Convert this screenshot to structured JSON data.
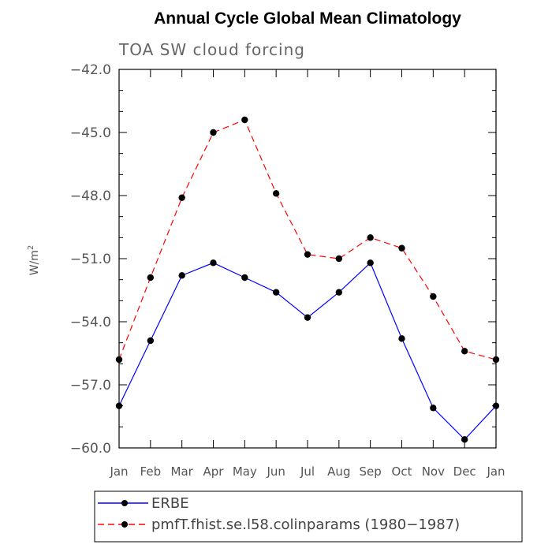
{
  "chart_data": {
    "type": "line",
    "title": "Annual Cycle Global Mean Climatology",
    "subtitle": "TOA SW cloud forcing",
    "xlabel": "",
    "ylabel": "W/m",
    "ylabel_superscript": "2",
    "categories": [
      "Jan",
      "Feb",
      "Mar",
      "Apr",
      "May",
      "Jun",
      "Jul",
      "Aug",
      "Sep",
      "Oct",
      "Nov",
      "Dec",
      "Jan"
    ],
    "ylim": [
      -60.0,
      -42.0
    ],
    "yticks": [
      -42.0,
      -45.0,
      -48.0,
      -51.0,
      -54.0,
      -57.0,
      -60.0
    ],
    "ytick_labels": [
      "−42.0",
      "−45.0",
      "−48.0",
      "−51.0",
      "−54.0",
      "−57.0",
      "−60.0"
    ],
    "grid": false,
    "legend_position": "bottom",
    "series": [
      {
        "name": "ERBE",
        "color": "#0000ff",
        "dash": "solid",
        "values": [
          -58.0,
          -54.9,
          -51.8,
          -51.2,
          -51.9,
          -52.6,
          -53.8,
          -52.6,
          -51.2,
          -54.8,
          -58.1,
          -59.6,
          -58.0
        ]
      },
      {
        "name": "pmfT.fhist.se.l58.colinparams (1980−1987)",
        "color": "#ff0000",
        "dash": "dashed",
        "values": [
          -55.8,
          -51.9,
          -48.1,
          -45.0,
          -44.4,
          -47.9,
          -50.8,
          -51.0,
          -50.0,
          -50.5,
          -52.8,
          -55.4,
          -55.8
        ]
      }
    ]
  }
}
